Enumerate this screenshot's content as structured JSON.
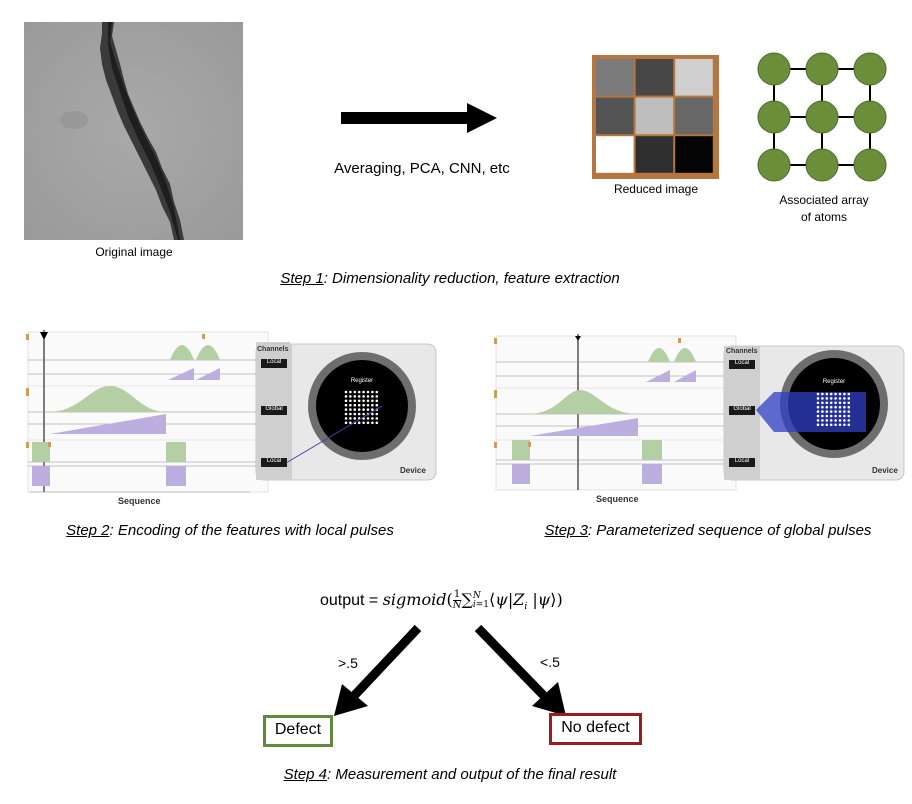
{
  "step1": {
    "original_caption": "Original image",
    "method_label": "Averaging, PCA, CNN, etc",
    "reduced_caption": "Reduced image",
    "atoms_caption_line1": "Associated array",
    "atoms_caption_line2": "of atoms",
    "reduced_pixels": [
      "#7b7b7b",
      "#474747",
      "#cfcfcf",
      "#545454",
      "#bdbdbd",
      "#676767",
      "#ffffff",
      "#2f2f2f",
      "#050505"
    ],
    "atom_color": "#6b8e3a",
    "label_prefix": "Step 1",
    "label_rest": ": Dimensionality reduction, feature extraction"
  },
  "step2": {
    "label_prefix": "Step 2",
    "label_rest": ": Encoding of the features with local pulses"
  },
  "step3": {
    "label_prefix": "Step 3",
    "label_rest": ": Parameterized sequence of global pulses"
  },
  "panel": {
    "sequence_label": "Sequence",
    "channels_label": "Channels",
    "local_label": "Local",
    "global_label": "Global",
    "register_label": "Register",
    "device_label": "Device",
    "pulse_green": "#b5cfa5",
    "pulse_purple": "#bdaee0"
  },
  "step4": {
    "formula_prefix": "output = ",
    "formula_fn": "sigmoid",
    "left_threshold": ">.5",
    "right_threshold": "<.5",
    "defect_label": "Defect",
    "no_defect_label": "No defect",
    "defect_color": "#5f8a3a",
    "no_defect_color": "#9b1c1c",
    "label_prefix": "Step 4",
    "label_rest": ": Measurement and output of the final result"
  }
}
